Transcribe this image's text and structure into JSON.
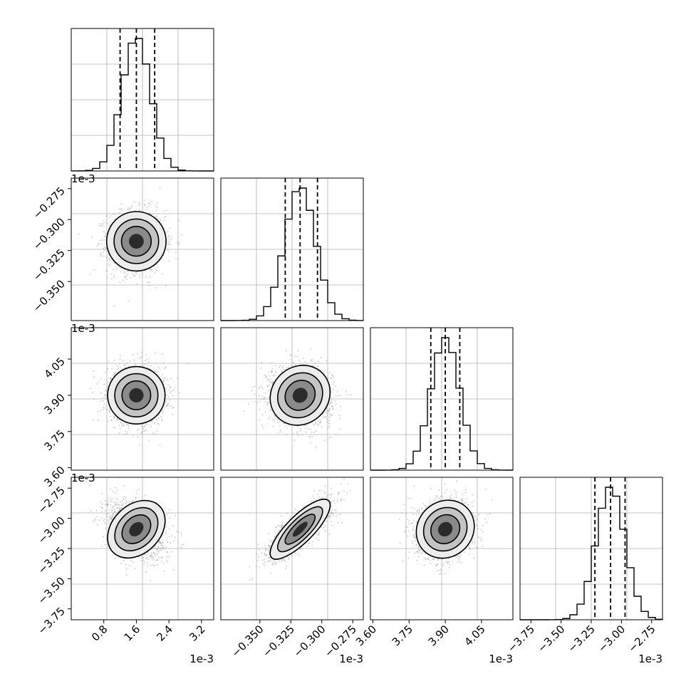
{
  "chart_data": {
    "type": "corner",
    "parameters": [
      {
        "offset": "1e-3",
        "median": 1.6,
        "quantiles": [
          1.2,
          1.6,
          2.05
        ],
        "sigma": 0.35,
        "range": [
          0.0,
          3.5
        ],
        "ticks": [
          "0.8",
          "1.6",
          "2.4",
          "3.2"
        ],
        "tick_values": [
          0.8,
          1.6,
          2.4,
          3.2
        ]
      },
      {
        "offset": "1e-3",
        "median": -0.3175,
        "quantiles": [
          -0.3295,
          -0.3175,
          -0.3035
        ],
        "sigma": 0.0125,
        "range": [
          -0.3815,
          -0.2665
        ],
        "ticks": [
          "-0.350",
          "-0.325",
          "-0.300",
          "-0.275"
        ],
        "tick_values": [
          -0.35,
          -0.325,
          -0.3,
          -0.275
        ]
      },
      {
        "offset": "1e-3",
        "median": 3.9,
        "quantiles": [
          3.84,
          3.9,
          3.96
        ],
        "sigma": 0.06,
        "range": [
          3.59,
          4.18
        ],
        "ticks": [
          "3.60",
          "3.75",
          "3.90",
          "4.05"
        ],
        "tick_values": [
          3.6,
          3.75,
          3.9,
          4.05
        ]
      },
      {
        "offset": "1e-3",
        "median": -3.09,
        "quantiles": [
          -3.22,
          -3.09,
          -2.97
        ],
        "sigma": 0.12,
        "range": [
          -3.84,
          -2.66
        ],
        "ticks": [
          "-3.75",
          "-3.50",
          "-3.25",
          "-3.00",
          "-2.75"
        ],
        "tick_values": [
          -3.75,
          -3.5,
          -3.25,
          -3.0,
          -2.75
        ]
      }
    ],
    "correlations": [
      {
        "pair": [
          0,
          1
        ],
        "rho": 0.0
      },
      {
        "pair": [
          0,
          2
        ],
        "rho": 0.0
      },
      {
        "pair": [
          1,
          2
        ],
        "rho": -0.1
      },
      {
        "pair": [
          0,
          3
        ],
        "rho": -0.3
      },
      {
        "pair": [
          1,
          3
        ],
        "rho": 0.8
      },
      {
        "pair": [
          2,
          3
        ],
        "rho": 0.1
      }
    ],
    "histogram_bins": 20,
    "grid": true,
    "colors": {
      "line": "#000000",
      "points": "#9a9a9a",
      "grid": "#b0b0b0"
    }
  }
}
